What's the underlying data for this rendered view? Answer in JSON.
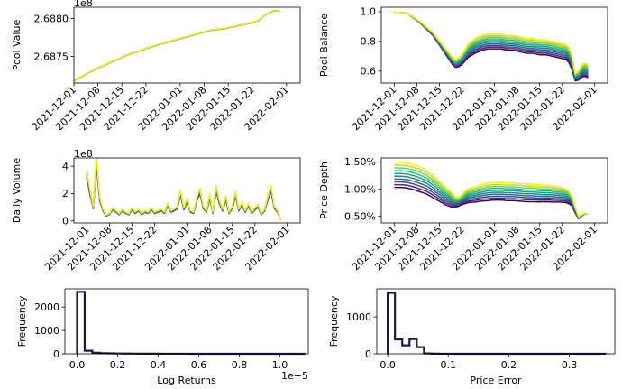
{
  "colors": {
    "viridis": [
      "#440154",
      "#482878",
      "#3e4989",
      "#31688e",
      "#26828e",
      "#1f9e89",
      "#35b779",
      "#6ece58",
      "#b5de2b",
      "#fde725"
    ],
    "hist_edge": "#1a1a4a",
    "spine": "#000000"
  },
  "chart_data": [
    {
      "id": "pool-value",
      "type": "line",
      "ylabel": "Pool Value",
      "offset_text": "1e8",
      "ylim": [
        2.68715,
        2.68815
      ],
      "yticks": [
        2.6875,
        2.688
      ],
      "ytick_labels": [
        "2.6875",
        "2.6880"
      ],
      "xlim": [
        0,
        66
      ],
      "xtick_days": [
        0,
        7,
        14,
        21,
        31,
        38,
        45,
        52,
        62
      ],
      "xtick_labels": [
        "2021-12-01",
        "2021-12-08",
        "2021-12-15",
        "2021-12-22",
        "2022-01-01",
        "2022-01-08",
        "2022-01-15",
        "2022-01-22",
        "2022-02-01"
      ],
      "n_series": 10,
      "series_spread": 4e-06,
      "x": [
        0,
        4,
        8,
        12,
        16,
        20,
        24,
        28,
        32,
        36,
        40,
        44,
        48,
        52,
        54,
        56,
        58,
        59,
        60
      ],
      "values": [
        2.68718,
        2.68728,
        2.68737,
        2.68745,
        2.68753,
        2.68759,
        2.68765,
        2.6877,
        2.68775,
        2.6878,
        2.68785,
        2.68787,
        2.68791,
        2.68795,
        2.68798,
        2.68806,
        2.6881,
        2.68811,
        2.68811
      ]
    },
    {
      "id": "pool-balance",
      "type": "line",
      "ylabel": "Pool Balance",
      "ylim": [
        0.52,
        1.03
      ],
      "yticks": [
        0.6,
        0.8,
        1.0
      ],
      "ytick_labels": [
        "0.6",
        "0.8",
        "1.0"
      ],
      "xlim": [
        -4,
        66
      ],
      "xtick_days": [
        0,
        7,
        14,
        21,
        31,
        38,
        45,
        52,
        62
      ],
      "xtick_labels": [
        "2021-12-01",
        "2021-12-08",
        "2021-12-15",
        "2021-12-22",
        "2022-01-01",
        "2022-01-08",
        "2022-01-15",
        "2022-01-22",
        "2022-02-01"
      ],
      "n_series": 10,
      "series_spread": 0.1,
      "x": [
        0,
        2,
        4,
        6,
        8,
        10,
        12,
        14,
        16,
        18,
        19,
        20,
        21,
        22,
        23,
        25,
        27,
        29,
        31,
        33,
        35,
        37,
        39,
        41,
        43,
        45,
        47,
        49,
        51,
        53,
        54,
        55,
        56,
        57,
        58,
        59,
        60
      ],
      "values": [
        0.995,
        0.995,
        0.99,
        0.96,
        0.93,
        0.89,
        0.85,
        0.79,
        0.73,
        0.67,
        0.65,
        0.66,
        0.68,
        0.71,
        0.74,
        0.77,
        0.79,
        0.8,
        0.8,
        0.8,
        0.79,
        0.79,
        0.78,
        0.77,
        0.77,
        0.76,
        0.76,
        0.75,
        0.74,
        0.73,
        0.71,
        0.66,
        0.56,
        0.57,
        0.6,
        0.61,
        0.6
      ],
      "spread_scale": [
        0,
        0,
        0,
        0.05,
        0.1,
        0.15,
        0.2,
        0.3,
        0.4,
        0.5,
        0.5,
        0.6,
        0.7,
        0.8,
        0.9,
        1,
        1,
        1,
        1,
        1,
        1,
        1,
        1,
        1,
        1,
        1,
        1,
        1,
        1,
        1,
        1,
        1,
        0.5,
        0.6,
        0.8,
        0.9,
        0.9
      ]
    },
    {
      "id": "daily-volume",
      "type": "line",
      "ylabel": "Daily Volume",
      "offset_text": "1e8",
      "ylim": [
        -0.15,
        4.6
      ],
      "yticks": [
        0,
        2,
        4
      ],
      "ytick_labels": [
        "0",
        "2",
        "4"
      ],
      "xlim": [
        -4,
        66
      ],
      "xtick_days": [
        0,
        7,
        14,
        21,
        31,
        38,
        45,
        52,
        62
      ],
      "xtick_labels": [
        "2021-12-01",
        "2021-12-08",
        "2021-12-15",
        "2021-12-22",
        "2022-01-01",
        "2022-01-08",
        "2022-01-15",
        "2022-01-22",
        "2022-02-01"
      ],
      "n_series": 10,
      "series_spread": 0.35,
      "x": [
        0,
        1,
        2,
        3,
        4,
        5,
        6,
        7,
        8,
        9,
        10,
        11,
        12,
        13,
        14,
        15,
        16,
        17,
        18,
        19,
        20,
        21,
        22,
        23,
        24,
        25,
        26,
        27,
        28,
        29,
        30,
        31,
        32,
        33,
        34,
        35,
        36,
        37,
        38,
        39,
        40,
        41,
        42,
        43,
        44,
        45,
        46,
        47,
        48,
        49,
        50,
        51,
        52,
        53,
        54,
        55,
        56,
        57,
        58,
        59,
        60
      ],
      "values": [
        3.4,
        2.1,
        1.0,
        4.4,
        1.6,
        0.8,
        0.4,
        0.5,
        0.9,
        0.7,
        0.5,
        0.8,
        0.6,
        0.5,
        0.9,
        0.6,
        0.8,
        0.5,
        0.7,
        0.6,
        0.9,
        0.6,
        0.7,
        0.8,
        0.6,
        1.2,
        0.7,
        0.8,
        1.0,
        2.1,
        0.9,
        1.5,
        0.7,
        0.6,
        1.6,
        2.2,
        1.0,
        0.7,
        1.8,
        0.6,
        2.4,
        1.4,
        0.8,
        1.7,
        0.6,
        1.0,
        2.0,
        0.8,
        1.3,
        0.7,
        1.2,
        0.6,
        0.9,
        1.1,
        0.5,
        0.8,
        1.7,
        2.4,
        1.0,
        0.7,
        0.1
      ]
    },
    {
      "id": "price-depth",
      "type": "line",
      "ylabel": "Price Depth",
      "ylim": [
        0.0038,
        0.0157
      ],
      "yticks": [
        0.005,
        0.01,
        0.015
      ],
      "ytick_labels": [
        "0.50%",
        "1.00%",
        "1.50%"
      ],
      "xlim": [
        -4,
        66
      ],
      "xtick_days": [
        0,
        7,
        14,
        21,
        31,
        38,
        45,
        52,
        62
      ],
      "xtick_labels": [
        "2021-12-01",
        "2021-12-08",
        "2021-12-15",
        "2021-12-22",
        "2022-01-01",
        "2022-01-08",
        "2022-01-15",
        "2022-01-22",
        "2022-02-01"
      ],
      "n_series": 10,
      "series_spread": 0.0046,
      "x": [
        0,
        2,
        4,
        6,
        8,
        10,
        12,
        14,
        16,
        18,
        19,
        20,
        21,
        22,
        23,
        25,
        27,
        29,
        31,
        33,
        35,
        37,
        39,
        41,
        43,
        45,
        47,
        49,
        51,
        53,
        54,
        55,
        56,
        57,
        58,
        59,
        60
      ],
      "values": [
        0.0126,
        0.0126,
        0.0125,
        0.0122,
        0.0118,
        0.0113,
        0.0105,
        0.0096,
        0.0087,
        0.0079,
        0.0076,
        0.0077,
        0.0081,
        0.0085,
        0.0088,
        0.009,
        0.0093,
        0.0095,
        0.0096,
        0.0096,
        0.0095,
        0.0095,
        0.0094,
        0.0093,
        0.0093,
        0.0092,
        0.0092,
        0.0091,
        0.009,
        0.0088,
        0.0085,
        0.0078,
        0.0062,
        0.0048,
        0.0052,
        0.0055,
        0.0055
      ],
      "spread_scale": [
        1,
        1,
        1,
        1,
        1,
        0.95,
        0.9,
        0.8,
        0.7,
        0.55,
        0.4,
        0.35,
        0.4,
        0.5,
        0.55,
        0.6,
        0.65,
        0.7,
        0.7,
        0.7,
        0.7,
        0.7,
        0.7,
        0.7,
        0.7,
        0.68,
        0.66,
        0.64,
        0.6,
        0.55,
        0.5,
        0.4,
        0.25,
        0.1,
        0.05,
        0.02,
        0
      ]
    },
    {
      "id": "log-returns-hist",
      "type": "histogram",
      "xlabel": "Log Returns",
      "ylabel": "Frequency",
      "offset_text": "1e−5",
      "xlim": [
        -0.06,
        1.14
      ],
      "ylim": [
        0,
        2780
      ],
      "xticks": [
        0.0,
        0.2,
        0.4,
        0.6,
        0.8,
        1.0
      ],
      "xtick_labels": [
        "0.0",
        "0.2",
        "0.4",
        "0.6",
        "0.8",
        "1.0"
      ],
      "yticks": [
        0,
        1000,
        2000
      ],
      "ytick_labels": [
        "0",
        "1000",
        "2000"
      ],
      "bin_width": 0.0375,
      "bin_start": 0.0,
      "counts": [
        2650,
        130,
        45,
        25,
        18,
        12,
        10,
        8,
        6,
        5,
        4,
        3,
        2,
        2,
        2,
        1,
        1,
        1,
        1,
        1,
        1,
        1,
        1,
        1,
        1,
        1,
        0,
        0,
        1,
        0
      ]
    },
    {
      "id": "price-error-hist",
      "type": "histogram",
      "xlabel": "Price Error",
      "ylabel": "Frequency",
      "xlim": [
        -0.018,
        0.375
      ],
      "ylim": [
        0,
        1760
      ],
      "xticks": [
        0.0,
        0.1,
        0.2,
        0.3
      ],
      "xtick_labels": [
        "0.0",
        "0.1",
        "0.2",
        "0.3"
      ],
      "yticks": [
        0,
        1000
      ],
      "ytick_labels": [
        "0",
        "1000"
      ],
      "bin_width": 0.012,
      "bin_start": 0.0,
      "counts": [
        1650,
        390,
        230,
        400,
        180,
        10,
        3,
        1,
        1,
        0,
        0,
        0,
        0,
        0,
        0,
        0,
        0,
        0,
        0,
        0,
        0,
        0,
        0,
        0,
        1,
        1,
        0,
        0,
        0,
        1
      ]
    }
  ]
}
